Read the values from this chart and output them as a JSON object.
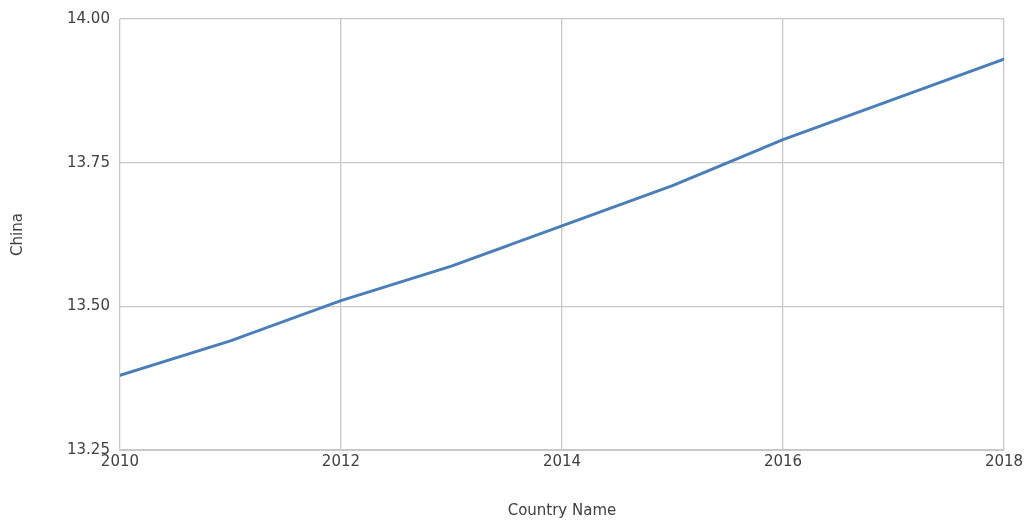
{
  "chart_data": {
    "type": "line",
    "xlabel": "Country Name",
    "ylabel": "China",
    "x": [
      2010,
      2011,
      2012,
      2013,
      2014,
      2015,
      2016,
      2017,
      2018
    ],
    "series": [
      {
        "color": "#4a7ebb",
        "values": [
          13.38,
          13.44,
          13.51,
          13.57,
          13.64,
          13.71,
          13.79,
          13.86,
          13.93
        ]
      }
    ],
    "xlim": [
      2010,
      2018
    ],
    "xticks": [
      2010,
      2012,
      2014,
      2016,
      2018
    ],
    "ylim": [
      13.25,
      14
    ],
    "yticks": [
      {
        "value": 13.25,
        "label": "13.25"
      },
      {
        "value": 13.5,
        "label": "13.50"
      },
      {
        "value": 13.75,
        "label": "13.75"
      },
      {
        "value": 14,
        "label": "14.00"
      }
    ],
    "grid": true,
    "legend": false,
    "marker": "none",
    "line_style": "solid"
  }
}
